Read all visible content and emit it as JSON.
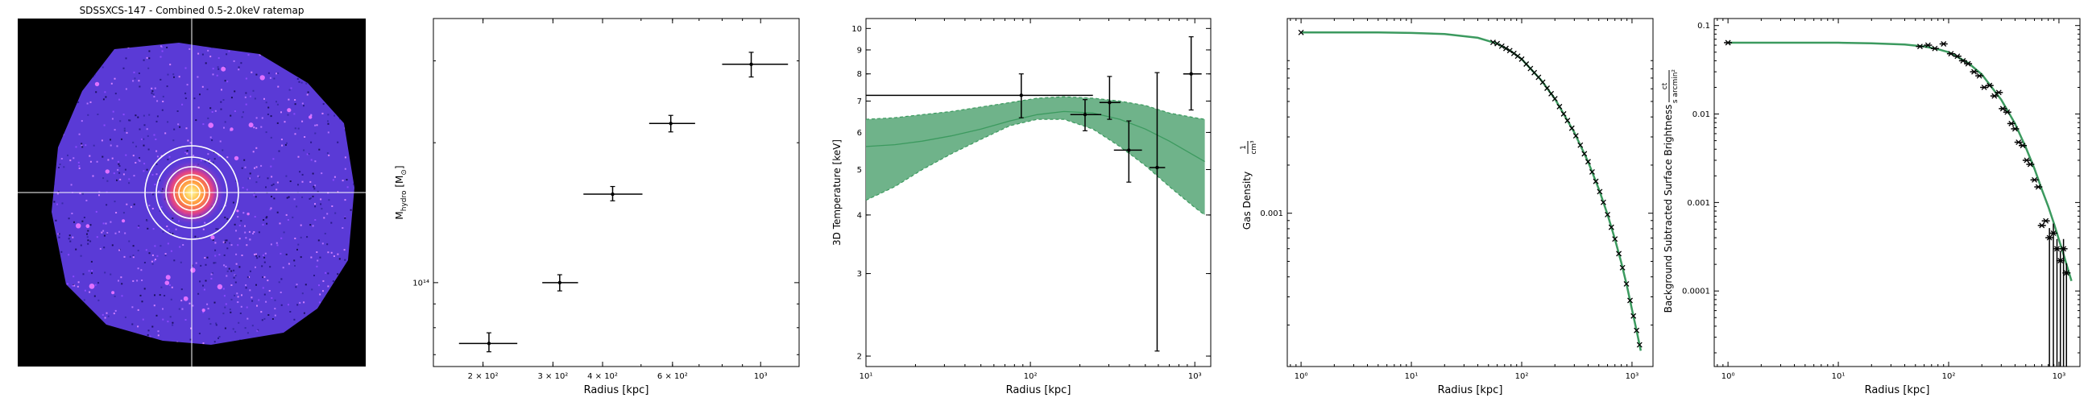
{
  "panels": {
    "ratemap": {
      "title": "SDSSXCS-147 - Combined 0.5-2.0keV ratemap"
    },
    "mass": {
      "xlabel": "Radius [kpc]",
      "ylabel": "M",
      "ylabel_sub": "hydro",
      "ylabel_unit": "[M",
      "ylabel_unit_sub": "⊙",
      "ylabel_close": "]"
    },
    "temperature": {
      "xlabel": "Radius [kpc]",
      "ylabel": "3D Temperature [keV]"
    },
    "density": {
      "xlabel": "Radius [kpc]",
      "ylabel": "Gas Density",
      "ylabel_unit_num": "1",
      "ylabel_unit_den": "cm³"
    },
    "brightness": {
      "xlabel": "Radius [kpc]",
      "ylabel": "Background Subtracted Surface Brightness",
      "ylabel_unit_num": "ct",
      "ylabel_unit_den": "s arcmin²"
    }
  },
  "colors": {
    "band": "#3c9a5f",
    "band_fill": "#6fb38a",
    "points": "#000000",
    "image_bg": "#000000",
    "emission": "#5a3ad6"
  },
  "chart_data": [
    {
      "type": "image",
      "title": "SDSSXCS-147 - Combined 0.5-2.0keV ratemap",
      "colormap": "magma-like (black, purple, pink, yellow)",
      "crosshair": true,
      "annuli": 6
    },
    {
      "type": "scatter",
      "xscale": "log",
      "yscale": "log",
      "xlabel": "Radius [kpc]",
      "ylabel": "M_hydro [M⊙]",
      "xlim": [
        150,
        1250
      ],
      "ylim": [
        66000000000000.0,
        370000000000000.0
      ],
      "xticks": [
        200,
        300,
        400,
        600,
        1000
      ],
      "xtick_labels": [
        "2 × 10²",
        "3 × 10²",
        "4 × 10²",
        "6 × 10²",
        "10³"
      ],
      "yticks": [
        100000000000000.0
      ],
      "ytick_labels": [
        "10¹⁴"
      ],
      "points": [
        {
          "x": 207,
          "y": 74000000000000.0,
          "xerr": [
            33,
            37
          ],
          "yerr": [
            3000000000000.0,
            4000000000000.0
          ]
        },
        {
          "x": 312,
          "y": 100000000000000.0,
          "xerr": [
            30,
            35
          ],
          "yerr": [
            4000000000000.0,
            4000000000000.0
          ]
        },
        {
          "x": 424,
          "y": 155000000000000.0,
          "xerr": [
            66,
            80
          ],
          "yerr": [
            5000000000000.0,
            6000000000000.0
          ]
        },
        {
          "x": 594,
          "y": 220000000000000.0,
          "xerr": [
            70,
            90
          ],
          "yerr": [
            9000000000000.0,
            9000000000000.0
          ]
        },
        {
          "x": 947,
          "y": 295000000000000.0,
          "xerr": [
            147,
            225
          ],
          "yerr": [
            18000000000000.0,
            18000000000000.0
          ]
        }
      ]
    },
    {
      "type": "line",
      "xscale": "log",
      "yscale": "log",
      "xlabel": "Radius [kpc]",
      "ylabel": "3D Temperature [keV]",
      "xlim": [
        10,
        1250
      ],
      "ylim": [
        1.9,
        10.5
      ],
      "xticks": [
        10,
        100,
        1000
      ],
      "xtick_labels": [
        "10¹",
        "10²",
        "10³"
      ],
      "yticks": [
        2,
        3,
        4,
        5,
        6,
        7,
        8,
        9,
        10
      ],
      "ytick_labels": [
        "2",
        "3",
        "4",
        "5",
        "6",
        "7",
        "8",
        "9",
        "10"
      ],
      "model": {
        "r": [
          10,
          15,
          22,
          33,
          50,
          75,
          110,
          160,
          240,
          350,
          500,
          700,
          1000,
          1150
        ],
        "median": [
          5.6,
          5.65,
          5.75,
          5.9,
          6.1,
          6.35,
          6.55,
          6.65,
          6.6,
          6.4,
          6.1,
          5.75,
          5.35,
          5.2
        ],
        "lower": [
          4.3,
          4.6,
          5.0,
          5.4,
          5.8,
          6.2,
          6.4,
          6.4,
          6.1,
          5.6,
          5.1,
          4.6,
          4.15,
          4.0
        ],
        "upper": [
          6.4,
          6.45,
          6.55,
          6.65,
          6.8,
          6.95,
          7.1,
          7.15,
          7.1,
          7.0,
          6.85,
          6.6,
          6.45,
          6.4
        ]
      },
      "points": [
        {
          "x": 88,
          "y": 7.2,
          "xerr": [
            78,
            152
          ],
          "yerr": [
            0.75,
            0.8
          ]
        },
        {
          "x": 215,
          "y": 6.55,
          "xerr": [
            40,
            55
          ],
          "yerr": [
            0.5,
            0.5
          ]
        },
        {
          "x": 303,
          "y": 6.95,
          "xerr": [
            40,
            50
          ],
          "yerr": [
            0.55,
            0.95
          ]
        },
        {
          "x": 397,
          "y": 5.5,
          "xerr": [
            75,
            80
          ],
          "yerr": [
            0.8,
            0.85
          ]
        },
        {
          "x": 590,
          "y": 5.05,
          "xerr": [
            60,
            70
          ],
          "yerr": [
            3.0,
            3.0
          ]
        },
        {
          "x": 950,
          "y": 8.0,
          "xerr": [
            100,
            150
          ],
          "yerr": [
            1.3,
            1.6
          ]
        }
      ]
    },
    {
      "type": "line",
      "xscale": "log",
      "yscale": "log",
      "xlabel": "Radius [kpc]",
      "ylabel": "Gas Density [1/cm³]",
      "xlim": [
        0.75,
        1550
      ],
      "ylim": [
        0.00011,
        0.0165
      ],
      "xticks": [
        1,
        10,
        100,
        1000
      ],
      "xtick_labels": [
        "10⁰",
        "10¹",
        "10²",
        "10³"
      ],
      "yticks": [
        0.001
      ],
      "ytick_labels": [
        "0.001"
      ],
      "model": {
        "r": [
          1,
          5,
          10,
          20,
          40,
          60,
          80,
          100,
          150,
          200,
          300,
          400,
          500,
          600,
          700,
          800,
          900,
          1000,
          1100,
          1200
        ],
        "median": [
          0.0135,
          0.0135,
          0.0134,
          0.0132,
          0.0125,
          0.0115,
          0.0103,
          0.0092,
          0.0068,
          0.0052,
          0.0032,
          0.0021,
          0.00142,
          0.00098,
          0.00069,
          0.00049,
          0.00035,
          0.00025,
          0.000185,
          0.000138
        ]
      },
      "point_radii": [
        1,
        55,
        60,
        66,
        72,
        78,
        85,
        92,
        100,
        110,
        120,
        130,
        142,
        155,
        170,
        185,
        200,
        220,
        240,
        260,
        285,
        310,
        340,
        370,
        400,
        435,
        470,
        510,
        550,
        600,
        650,
        700,
        760,
        820,
        890,
        960,
        1030,
        1100,
        1170
      ]
    },
    {
      "type": "line",
      "xscale": "log",
      "yscale": "log",
      "xlabel": "Radius [kpc]",
      "ylabel": "Background Subtracted Surface Brightness [ct/(s arcmin²)]",
      "xlim": [
        0.75,
        1550
      ],
      "ylim": [
        1.4e-05,
        0.12
      ],
      "xticks": [
        1,
        10,
        100,
        1000
      ],
      "xtick_labels": [
        "10⁰",
        "10¹",
        "10²",
        "10³"
      ],
      "yticks": [
        0.0001,
        0.001,
        0.01,
        0.1
      ],
      "ytick_labels": [
        "0.0001",
        "0.001",
        "0.01",
        "0.1"
      ],
      "model": {
        "r": [
          1,
          5,
          10,
          20,
          40,
          60,
          80,
          100,
          150,
          200,
          300,
          400,
          500,
          600,
          700,
          800,
          900,
          1000,
          1100,
          1200,
          1300
        ],
        "median": [
          0.064,
          0.064,
          0.064,
          0.063,
          0.061,
          0.058,
          0.054,
          0.05,
          0.038,
          0.028,
          0.0145,
          0.0078,
          0.0042,
          0.0024,
          0.0014,
          0.0009,
          0.00058,
          0.00038,
          0.00026,
          0.00018,
          0.00013
        ]
      },
      "points": [
        {
          "x": 1,
          "y": 0.064
        },
        {
          "x": 55,
          "y": 0.058
        },
        {
          "x": 65,
          "y": 0.06
        },
        {
          "x": 75,
          "y": 0.055
        },
        {
          "x": 90,
          "y": 0.062
        },
        {
          "x": 105,
          "y": 0.048
        },
        {
          "x": 120,
          "y": 0.045
        },
        {
          "x": 135,
          "y": 0.04
        },
        {
          "x": 150,
          "y": 0.037
        },
        {
          "x": 170,
          "y": 0.03
        },
        {
          "x": 190,
          "y": 0.027
        },
        {
          "x": 210,
          "y": 0.02
        },
        {
          "x": 235,
          "y": 0.021
        },
        {
          "x": 260,
          "y": 0.016
        },
        {
          "x": 285,
          "y": 0.0175
        },
        {
          "x": 310,
          "y": 0.0115
        },
        {
          "x": 340,
          "y": 0.0105
        },
        {
          "x": 370,
          "y": 0.0078
        },
        {
          "x": 400,
          "y": 0.0068
        },
        {
          "x": 430,
          "y": 0.0048
        },
        {
          "x": 470,
          "y": 0.0044
        },
        {
          "x": 510,
          "y": 0.003
        },
        {
          "x": 550,
          "y": 0.0027
        },
        {
          "x": 600,
          "y": 0.0018
        },
        {
          "x": 650,
          "y": 0.0015
        },
        {
          "x": 700,
          "y": 0.00055
        },
        {
          "x": 760,
          "y": 0.00062
        },
        {
          "x": 820,
          "y": 0.0004
        },
        {
          "x": 890,
          "y": 0.00045
        },
        {
          "x": 960,
          "y": 0.0003
        },
        {
          "x": 1030,
          "y": 0.00022
        },
        {
          "x": 1100,
          "y": 0.0003
        },
        {
          "x": 1170,
          "y": 0.00016
        }
      ]
    }
  ]
}
